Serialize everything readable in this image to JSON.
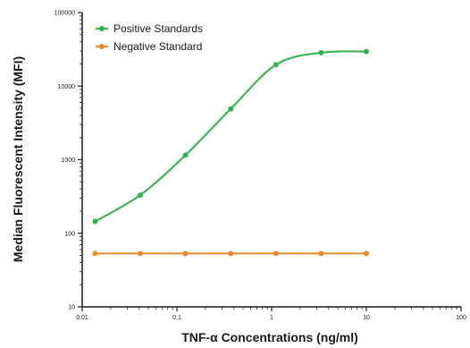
{
  "chart_data": {
    "type": "line",
    "title": "",
    "xlabel": "TNF-α Concentrations (ng/ml)",
    "ylabel": "Median Fluorescent Intensity (MFI)",
    "xscale": "log",
    "yscale": "log",
    "xlim": [
      0.01,
      100
    ],
    "ylim": [
      10,
      100000
    ],
    "x_tick_labels": [
      "0.01",
      "0.1",
      "1",
      "10",
      "100"
    ],
    "y_tick_labels": [
      "10",
      "100",
      "1000",
      "10000",
      "100000"
    ],
    "grid": false,
    "legend_position": "top-left",
    "series": [
      {
        "name": "Positive Standards",
        "color": "#2db34a",
        "marker": "circle",
        "x": [
          0.0137,
          0.041,
          0.123,
          0.37,
          1.11,
          3.33,
          10
        ],
        "y": [
          145,
          330,
          1150,
          4900,
          19500,
          28500,
          29500
        ]
      },
      {
        "name": "Negative Standard",
        "color": "#e8892b",
        "marker": "circle",
        "x": [
          0.0137,
          0.041,
          0.123,
          0.37,
          1.11,
          3.33,
          10
        ],
        "y": [
          53,
          53,
          53,
          53,
          53,
          53,
          53
        ]
      }
    ]
  }
}
